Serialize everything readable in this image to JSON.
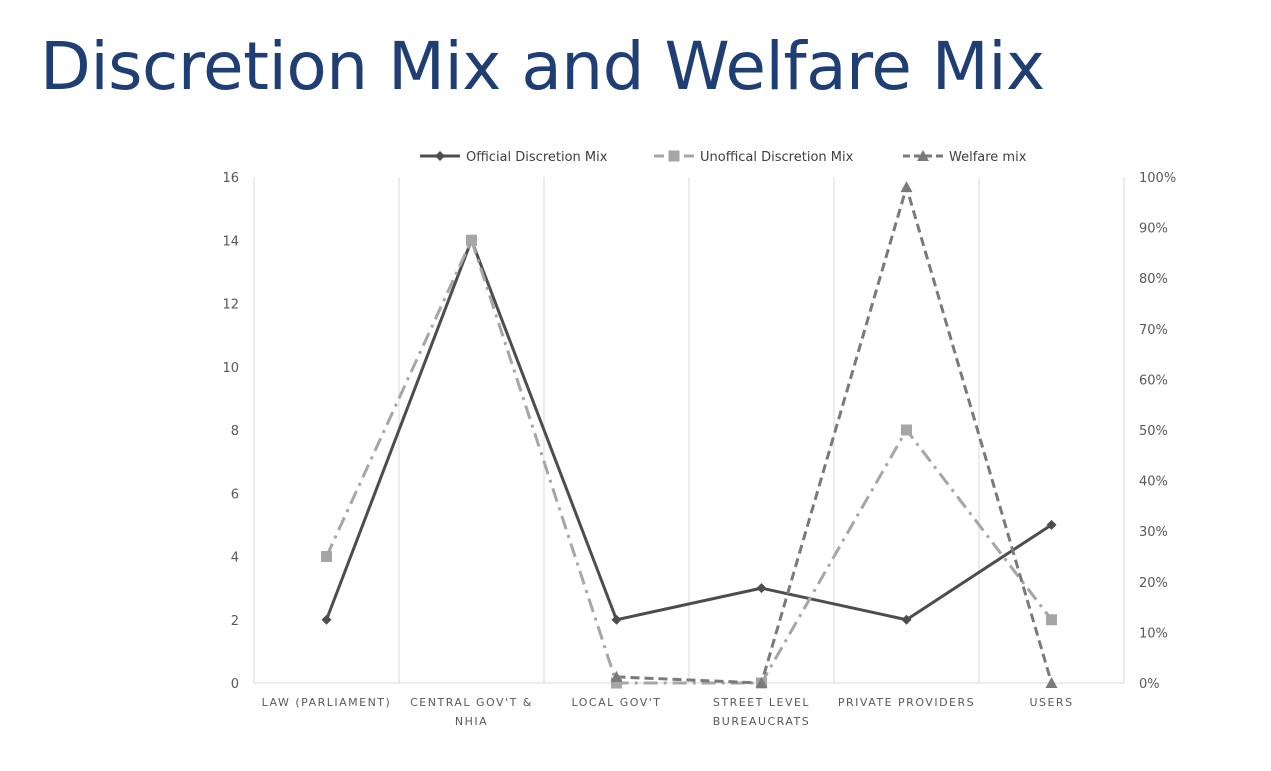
{
  "page": {
    "title": "Discretion Mix and Welfare Mix"
  },
  "chart_data": {
    "type": "line",
    "title": "",
    "categories": [
      [
        "LAW (PARLIAMENT)"
      ],
      [
        "CENTRAL GOV'T &",
        "NHIA"
      ],
      [
        "LOCAL GOV'T"
      ],
      [
        "STREET LEVEL",
        "BUREAUCRATS"
      ],
      [
        "PRIVATE PROVIDERS"
      ],
      [
        "USERS"
      ]
    ],
    "ylim": [
      0,
      16
    ],
    "yticks": [
      0,
      2,
      4,
      6,
      8,
      10,
      12,
      14,
      16
    ],
    "y2lim": [
      0,
      100
    ],
    "y2ticks": [
      "0%",
      "10%",
      "20%",
      "30%",
      "40%",
      "50%",
      "60%",
      "70%",
      "80%",
      "90%",
      "100%"
    ],
    "grid": "vertical",
    "legend_position": "top",
    "series": [
      {
        "name": "Official Discretion Mix",
        "axis": "left",
        "values": [
          2,
          14,
          2,
          3,
          2,
          5
        ],
        "color": "#4d4d4d",
        "marker": "diamond",
        "dash": "solid"
      },
      {
        "name": "Unoffical Discretion Mix",
        "axis": "left",
        "values": [
          4,
          14,
          0,
          0,
          8,
          2
        ],
        "color": "#a6a6a6",
        "marker": "square",
        "dash": "dashdot"
      },
      {
        "name": "Welfare mix",
        "axis": "right",
        "values": [
          null,
          null,
          1.2,
          0,
          98,
          0
        ],
        "color": "#7a7a7a",
        "marker": "triangle",
        "dash": "dash"
      }
    ]
  }
}
